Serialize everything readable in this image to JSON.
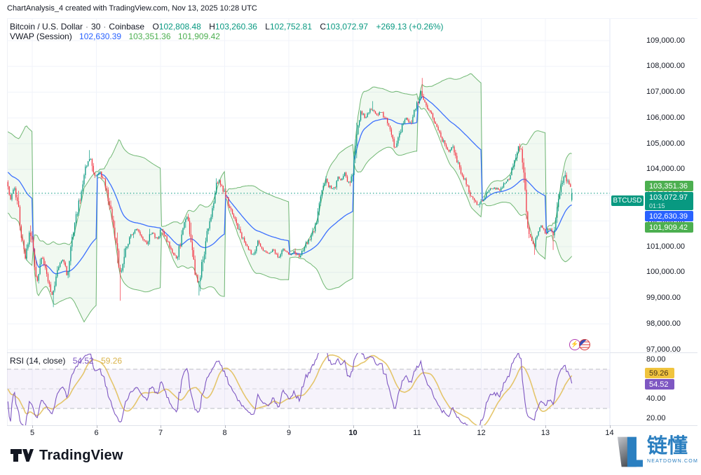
{
  "header": {
    "title": "ChartAnalysis_4 created with TradingView.com, Nov 13, 2025 10:28 UTC"
  },
  "legend": {
    "symbol": "Bitcoin / U.S. Dollar",
    "sep": "·",
    "interval": "30",
    "exchange": "Coinbase",
    "o_label": "O",
    "o": "102,808.48",
    "h_label": "H",
    "h": "103,260.36",
    "l_label": "L",
    "l": "102,752.81",
    "c_label": "C",
    "c": "103,072.97",
    "change": "+269.13 (+0.26%)"
  },
  "vwap_legend": {
    "name": "VWAP (Session)",
    "mid": "102,630.39",
    "upper": "103,351.36",
    "lower": "101,909.42"
  },
  "rsi_legend": {
    "name": "RSI (14, close)",
    "value": "54.52",
    "ma": "59.26"
  },
  "price_axis": {
    "ticks": [
      {
        "label": "109,000.00",
        "value": 109000
      },
      {
        "label": "108,000.00",
        "value": 108000
      },
      {
        "label": "107,000.00",
        "value": 107000
      },
      {
        "label": "106,000.00",
        "value": 106000
      },
      {
        "label": "105,000.00",
        "value": 105000
      },
      {
        "label": "104,000.00",
        "value": 104000
      },
      {
        "label": "103,000.00",
        "value": 103000
      },
      {
        "label": "102,000.00",
        "value": 102000
      },
      {
        "label": "101,000.00",
        "value": 101000
      },
      {
        "label": "100,000.00",
        "value": 100000
      },
      {
        "label": "99,000.00",
        "value": 99000
      },
      {
        "label": "98,000.00",
        "value": 98000
      },
      {
        "label": "97,000.00",
        "value": 97000
      }
    ]
  },
  "rsi_axis": {
    "ticks": [
      {
        "label": "80.00",
        "value": 80
      },
      {
        "label": "40.00",
        "value": 40
      },
      {
        "label": "20.00",
        "value": 20
      }
    ]
  },
  "price_tags": [
    {
      "label": "103,351.36",
      "value": 103351.36,
      "bg": "#4caf50",
      "type": "vwap-upper"
    },
    {
      "label": "103,072.97",
      "countdown": "01:15",
      "value": 103072.97,
      "bg": "#089981",
      "type": "last"
    },
    {
      "label": "102,630.39",
      "value": 102630.39,
      "bg": "#2962ff",
      "type": "vwap-mid"
    },
    {
      "label": "101,909.42",
      "value": 101909.42,
      "bg": "#4caf50",
      "type": "vwap-lower"
    }
  ],
  "symbol_tag": {
    "label": "BTCUSD",
    "bg": "#089981"
  },
  "rsi_tags": [
    {
      "label": "59.26",
      "value": 59.26,
      "bg": "#f0c43e",
      "fg": "#4a3417"
    },
    {
      "label": "54.52",
      "value": 54.52,
      "bg": "#7e57c2",
      "fg": "#ffffff"
    }
  ],
  "time_axis": {
    "labels": [
      {
        "text": "5",
        "day": 5,
        "bold": false
      },
      {
        "text": "6",
        "day": 6,
        "bold": false
      },
      {
        "text": "7",
        "day": 7,
        "bold": false
      },
      {
        "text": "8",
        "day": 8,
        "bold": false
      },
      {
        "text": "9",
        "day": 9,
        "bold": false
      },
      {
        "text": "10",
        "day": 10,
        "bold": true
      },
      {
        "text": "11",
        "day": 11,
        "bold": false
      },
      {
        "text": "12",
        "day": 12,
        "bold": false
      },
      {
        "text": "13",
        "day": 13,
        "bold": false
      },
      {
        "text": "14",
        "day": 14,
        "bold": false
      }
    ]
  },
  "badges": {
    "flash": "⚡"
  },
  "footer": {
    "brand": "TradingView"
  },
  "watermark": {
    "cjk": "链懂",
    "domain": "NEATDOWN.COM"
  },
  "chart_data": {
    "type": "candlestick",
    "title": "Bitcoin / U.S. Dollar",
    "symbol": "BTCUSD",
    "exchange": "Coinbase",
    "interval_minutes": 30,
    "timestamp": "Nov 13, 2025 10:28 UTC",
    "ohlc": {
      "open": 102808.48,
      "high": 103260.36,
      "low": 102752.81,
      "close": 103072.97,
      "change": 269.13,
      "change_pct": 0.26
    },
    "last_price": 103072.97,
    "vwap_session": {
      "mid": 102630.39,
      "upper": 103351.36,
      "lower": 101909.42
    },
    "rsi": {
      "length": 14,
      "source": "close",
      "value": 54.52,
      "ma": 59.26,
      "levels": [
        70,
        50,
        30
      ],
      "visible_range": [
        20,
        80
      ]
    },
    "y_axis": {
      "min": 97000,
      "max": 109000,
      "tick_step": 1000,
      "grid": true
    },
    "x_axis": {
      "unit": "day of Nov 2025",
      "visible_days": [
        5,
        14
      ],
      "grid": true
    },
    "colors": {
      "up": "#089981",
      "down": "#f23645",
      "vwap_mid": "#2962ff",
      "vwap_band": "#43a047",
      "vwap_fill": "rgba(76,175,80,0.08)",
      "rsi_line": "#7e57c2",
      "rsi_ma": "#e2c05c",
      "rsi_fill": "rgba(126,87,194,0.07)",
      "last_price_line": "#089981"
    },
    "price_path": [
      [
        4.6,
        103450
      ],
      [
        4.66,
        102800
      ],
      [
        4.72,
        103250
      ],
      [
        4.78,
        102500
      ],
      [
        4.84,
        101300
      ],
      [
        4.9,
        100500
      ],
      [
        4.96,
        101700
      ],
      [
        5.02,
        100800
      ],
      [
        5.08,
        99600
      ],
      [
        5.14,
        100600
      ],
      [
        5.2,
        100200
      ],
      [
        5.26,
        99500
      ],
      [
        5.32,
        99100
      ],
      [
        5.4,
        100100
      ],
      [
        5.48,
        100500
      ],
      [
        5.54,
        99900
      ],
      [
        5.62,
        101400
      ],
      [
        5.7,
        102300
      ],
      [
        5.78,
        103500
      ],
      [
        5.86,
        104300
      ],
      [
        5.92,
        104400
      ],
      [
        5.98,
        103700
      ],
      [
        6.06,
        103900
      ],
      [
        6.14,
        103400
      ],
      [
        6.22,
        102400
      ],
      [
        6.3,
        101200
      ],
      [
        6.38,
        99900
      ],
      [
        6.46,
        101000
      ],
      [
        6.54,
        101400
      ],
      [
        6.62,
        101700
      ],
      [
        6.7,
        101400
      ],
      [
        6.78,
        101100
      ],
      [
        6.86,
        101600
      ],
      [
        6.94,
        101300
      ],
      [
        7.02,
        101700
      ],
      [
        7.1,
        101200
      ],
      [
        7.18,
        100800
      ],
      [
        7.26,
        100500
      ],
      [
        7.34,
        101600
      ],
      [
        7.42,
        102200
      ],
      [
        7.48,
        101200
      ],
      [
        7.54,
        99900
      ],
      [
        7.6,
        99600
      ],
      [
        7.68,
        100800
      ],
      [
        7.76,
        102000
      ],
      [
        7.84,
        102900
      ],
      [
        7.9,
        103700
      ],
      [
        7.96,
        103300
      ],
      [
        8.04,
        102800
      ],
      [
        8.12,
        102300
      ],
      [
        8.2,
        101800
      ],
      [
        8.28,
        101300
      ],
      [
        8.36,
        100900
      ],
      [
        8.44,
        100700
      ],
      [
        8.52,
        101200
      ],
      [
        8.6,
        100900
      ],
      [
        8.68,
        100700
      ],
      [
        8.76,
        100900
      ],
      [
        8.84,
        100500
      ],
      [
        8.92,
        100900
      ],
      [
        9.0,
        100700
      ],
      [
        9.08,
        100800
      ],
      [
        9.16,
        100600
      ],
      [
        9.24,
        101000
      ],
      [
        9.32,
        101300
      ],
      [
        9.4,
        101700
      ],
      [
        9.46,
        102400
      ],
      [
        9.52,
        103100
      ],
      [
        9.58,
        103600
      ],
      [
        9.64,
        103300
      ],
      [
        9.7,
        103200
      ],
      [
        9.76,
        103700
      ],
      [
        9.82,
        103500
      ],
      [
        9.88,
        103900
      ],
      [
        9.94,
        103400
      ],
      [
        10.0,
        103800
      ],
      [
        10.06,
        105600
      ],
      [
        10.12,
        106200
      ],
      [
        10.2,
        106000
      ],
      [
        10.28,
        106350
      ],
      [
        10.36,
        106100
      ],
      [
        10.44,
        106250
      ],
      [
        10.52,
        105900
      ],
      [
        10.6,
        105300
      ],
      [
        10.66,
        104800
      ],
      [
        10.74,
        105500
      ],
      [
        10.82,
        106000
      ],
      [
        10.9,
        105800
      ],
      [
        10.98,
        106400
      ],
      [
        11.06,
        107000
      ],
      [
        11.1,
        106800
      ],
      [
        11.16,
        106400
      ],
      [
        11.24,
        106100
      ],
      [
        11.32,
        105600
      ],
      [
        11.4,
        105100
      ],
      [
        11.48,
        104700
      ],
      [
        11.56,
        104900
      ],
      [
        11.64,
        104200
      ],
      [
        11.72,
        103700
      ],
      [
        11.8,
        103200
      ],
      [
        11.88,
        102800
      ],
      [
        11.96,
        102600
      ],
      [
        12.04,
        102900
      ],
      [
        12.12,
        103200
      ],
      [
        12.2,
        103300
      ],
      [
        12.28,
        103200
      ],
      [
        12.36,
        103450
      ],
      [
        12.44,
        103700
      ],
      [
        12.52,
        104400
      ],
      [
        12.58,
        104900
      ],
      [
        12.64,
        104600
      ],
      [
        12.7,
        102500
      ],
      [
        12.76,
        101300
      ],
      [
        12.82,
        101000
      ],
      [
        12.88,
        101600
      ],
      [
        12.94,
        101800
      ],
      [
        13.0,
        101500
      ],
      [
        13.06,
        101700
      ],
      [
        13.12,
        101500
      ],
      [
        13.18,
        102300
      ],
      [
        13.24,
        103300
      ],
      [
        13.3,
        103800
      ],
      [
        13.36,
        103400
      ],
      [
        13.43,
        103072.97
      ]
    ],
    "extremes": [
      {
        "d": 5.32,
        "p": 98650,
        "side": "low"
      },
      {
        "d": 6.38,
        "p": 98900,
        "side": "low"
      },
      {
        "d": 7.6,
        "p": 99100,
        "side": "low"
      },
      {
        "d": 5.9,
        "p": 104750,
        "side": "high"
      },
      {
        "d": 10.3,
        "p": 106650,
        "side": "high"
      },
      {
        "d": 11.07,
        "p": 107550,
        "side": "high"
      },
      {
        "d": 12.82,
        "p": 100680,
        "side": "low"
      },
      {
        "d": 13.13,
        "p": 100870,
        "side": "low"
      },
      {
        "d": 13.3,
        "p": 103950,
        "side": "high"
      }
    ]
  }
}
